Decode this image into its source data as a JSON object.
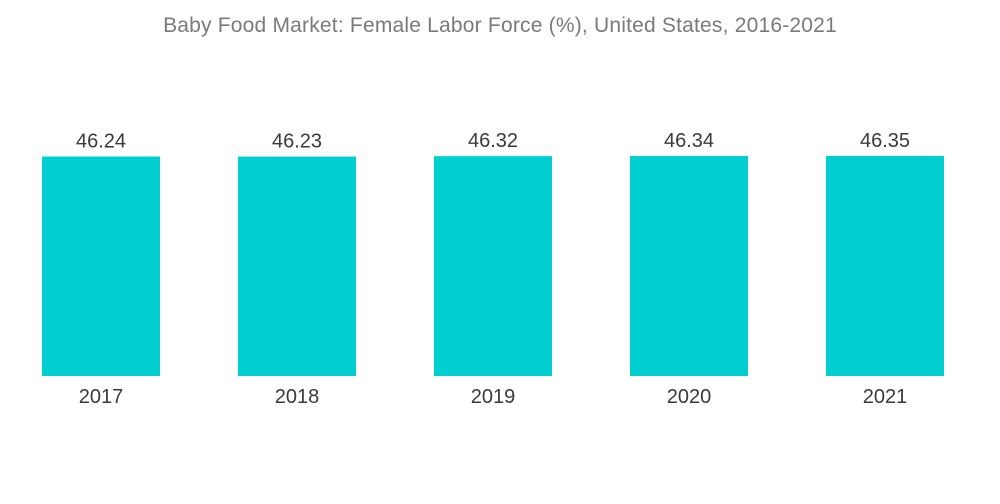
{
  "chart_data": {
    "type": "bar",
    "title": "Baby Food Market: Female Labor Force (%), United States, 2016-2021",
    "categories": [
      "2017",
      "2018",
      "2019",
      "2020",
      "2021"
    ],
    "values": [
      46.24,
      46.23,
      46.32,
      46.34,
      46.35
    ],
    "value_labels": [
      "46.24",
      "46.23",
      "46.32",
      "46.34",
      "46.35"
    ],
    "xlabel": "",
    "ylabel": "",
    "grid": false,
    "legend": "none",
    "bar_color": "#00cfd1"
  }
}
